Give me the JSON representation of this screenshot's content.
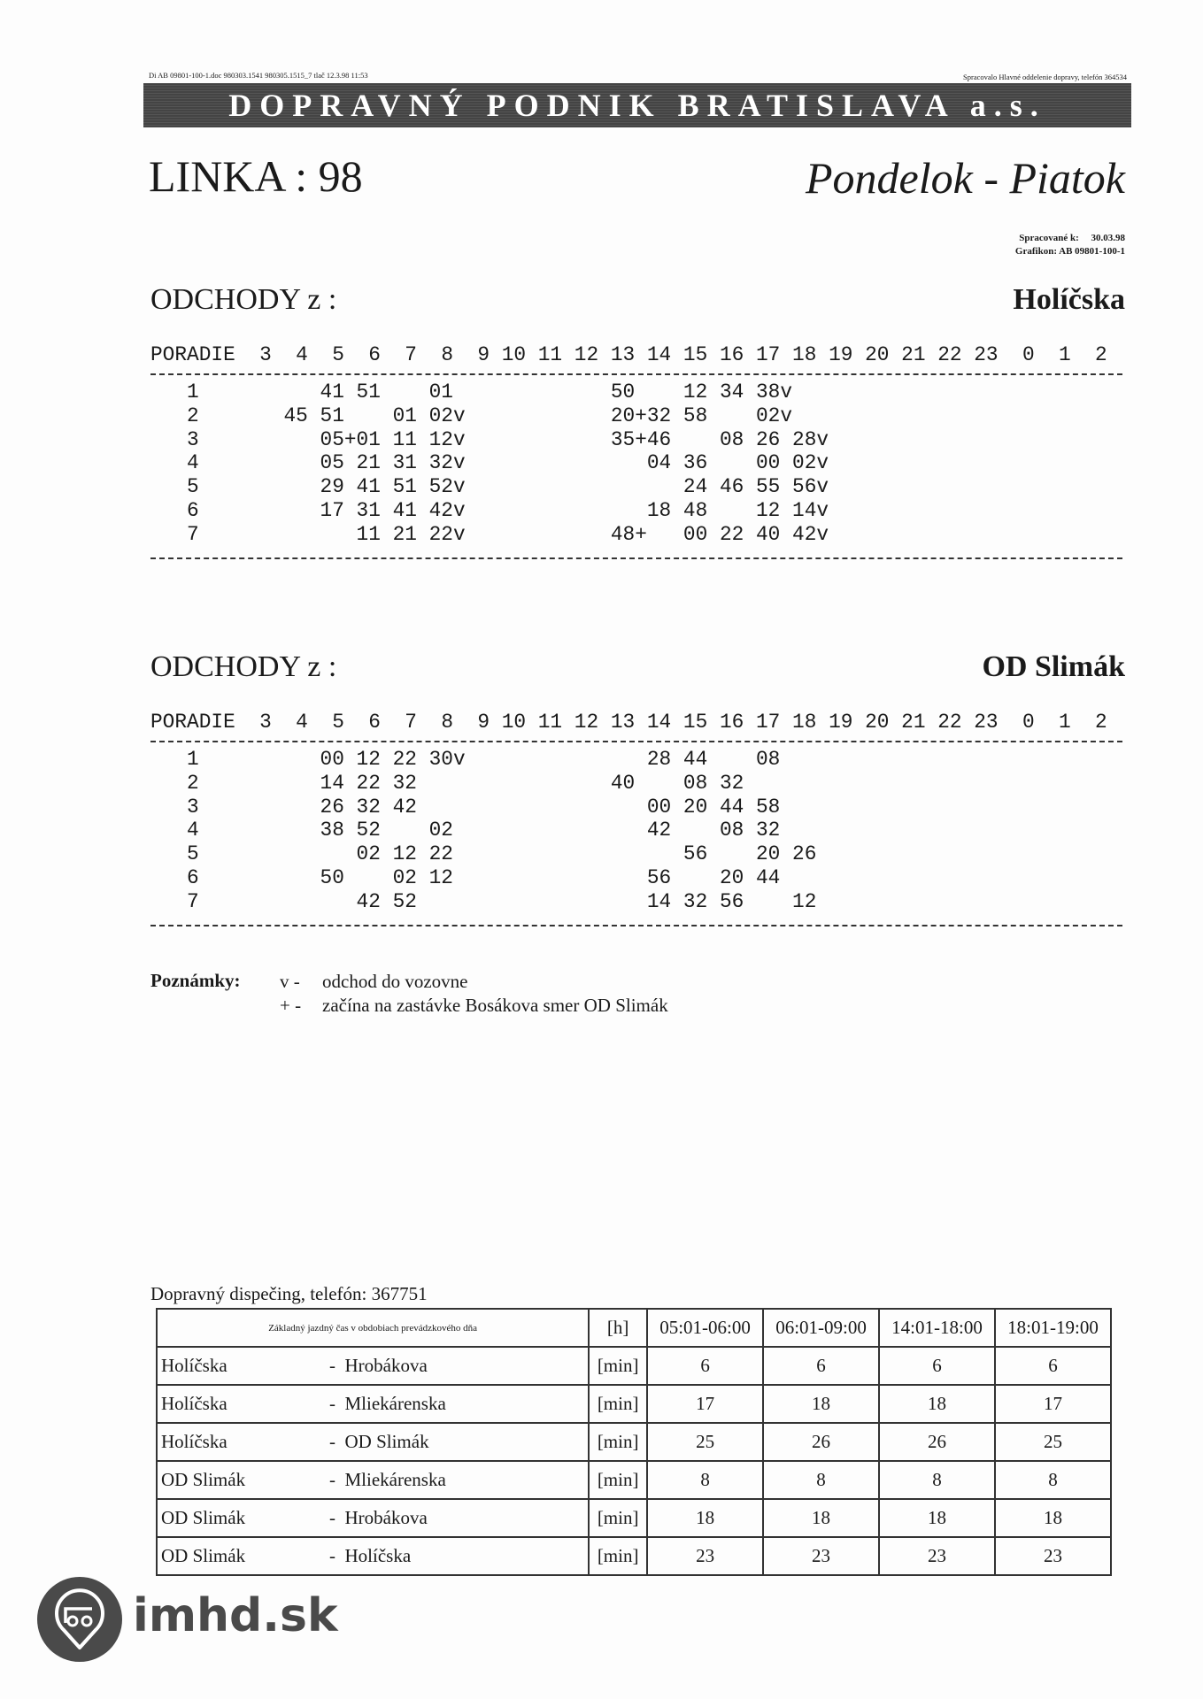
{
  "header": {
    "file_info": "Di AB 09801-100-1.doc 980303.1541 980305.1515_7 tlač 12.3.98 11:53",
    "processed_by": "Spracovalo Hlavné oddelenie dopravy, telefón 364534",
    "company": "DOPRAVNÝ PODNIK BRATISLAVA  a.s.",
    "line": "LINKA : 98",
    "days": "Pondelok - Piatok",
    "processed_label": "Spracované k:",
    "processed_date": "30.03.98",
    "grafikon_label": "Grafikon:",
    "grafikon_value": "AB 09801-100-1"
  },
  "hours": [
    "3",
    "4",
    "5",
    "6",
    "7",
    "8",
    "9",
    "10",
    "11",
    "12",
    "13",
    "14",
    "15",
    "16",
    "17",
    "18",
    "19",
    "20",
    "21",
    "22",
    "23",
    "0",
    "1",
    "2"
  ],
  "poradie_label": "PORADIE",
  "sections": [
    {
      "title": "ODCHODY z :",
      "stop": "Holíčska",
      "rows": [
        {
          "n": "1",
          "d": {
            "5": "41",
            "6": "51",
            "8": "01",
            "13": "50",
            "15": "12",
            "16": "34",
            "17": "38v"
          }
        },
        {
          "n": "2",
          "d": {
            "4": "45",
            "5": "51",
            "7": "01",
            "8": "02v",
            "13": "20+",
            "14": "32",
            "15": "58",
            "17": "02v"
          }
        },
        {
          "n": "3",
          "d": {
            "5": "05+",
            "6": "01",
            "7": "11",
            "8": "12v",
            "13": "35+",
            "14": "46",
            "16": "08",
            "17": "26",
            "18": "28v"
          }
        },
        {
          "n": "4",
          "d": {
            "5": "05",
            "6": "21",
            "7": "31",
            "8": "32v",
            "14": "04",
            "15": "36",
            "17": "00",
            "18": "02v"
          }
        },
        {
          "n": "5",
          "d": {
            "5": "29",
            "6": "41",
            "7": "51",
            "8": "52v",
            "15": "24",
            "16": "46",
            "17": "55",
            "18": "56v"
          }
        },
        {
          "n": "6",
          "d": {
            "5": "17",
            "6": "31",
            "7": "41",
            "8": "42v",
            "14": "18",
            "15": "48",
            "17": "12",
            "18": "14v"
          }
        },
        {
          "n": "7",
          "d": {
            "6": "11",
            "7": "21",
            "8": "22v",
            "13": "48+",
            "15": "00",
            "16": "22",
            "17": "40",
            "18": "42v"
          }
        }
      ]
    },
    {
      "title": "ODCHODY z :",
      "stop": "OD Slimák",
      "rows": [
        {
          "n": "1",
          "d": {
            "5": "00",
            "6": "12",
            "7": "22",
            "8": "30v",
            "14": "28",
            "15": "44",
            "17": "08"
          }
        },
        {
          "n": "2",
          "d": {
            "5": "14",
            "6": "22",
            "7": "32",
            "13": "40",
            "15": "08",
            "16": "32"
          }
        },
        {
          "n": "3",
          "d": {
            "5": "26",
            "6": "32",
            "7": "42",
            "14": "00",
            "15": "20",
            "16": "44",
            "17": "58"
          }
        },
        {
          "n": "4",
          "d": {
            "5": "38",
            "6": "52",
            "8": "02",
            "14": "42",
            "16": "08",
            "17": "32"
          }
        },
        {
          "n": "5",
          "d": {
            "6": "02",
            "7": "12",
            "8": "22",
            "15": "56",
            "17": "20",
            "18": "26"
          }
        },
        {
          "n": "6",
          "d": {
            "5": "50",
            "7": "02",
            "8": "12",
            "14": "56",
            "16": "20",
            "17": "44"
          }
        },
        {
          "n": "7",
          "d": {
            "6": "42",
            "7": "52",
            "14": "14",
            "15": "32",
            "16": "56",
            "18": "12"
          }
        }
      ]
    }
  ],
  "notes": {
    "label": "Poznámky:",
    "items": [
      {
        "sym": "v -",
        "text": "odchod do vozovne"
      },
      {
        "sym": "+ -",
        "text": "začína na zastávke Bosákova smer OD Slimák"
      }
    ]
  },
  "dispatch": "Dopravný dispečing, telefón:  367751",
  "travel_table": {
    "header": [
      "Základný jazdný čas v obdobiach prevádzkového dňa",
      "[h]",
      "05:01-06:00",
      "06:01-09:00",
      "14:01-18:00",
      "18:01-19:00"
    ],
    "rows": [
      {
        "from": "Holíčska",
        "to": "Hrobákova",
        "unit": "[min]",
        "v": [
          "6",
          "6",
          "6",
          "6"
        ]
      },
      {
        "from": "Holíčska",
        "to": "Mliekárenska",
        "unit": "[min]",
        "v": [
          "17",
          "18",
          "18",
          "17"
        ]
      },
      {
        "from": "Holíčska",
        "to": "OD Slimák",
        "unit": "[min]",
        "v": [
          "25",
          "26",
          "26",
          "25"
        ]
      },
      {
        "from": "OD Slimák",
        "to": "Mliekárenska",
        "unit": "[min]",
        "v": [
          "8",
          "8",
          "8",
          "8"
        ]
      },
      {
        "from": "OD Slimák",
        "to": "Hrobákova",
        "unit": "[min]",
        "v": [
          "18",
          "18",
          "18",
          "18"
        ]
      },
      {
        "from": "OD Slimák",
        "to": "Holíčska",
        "unit": "[min]",
        "v": [
          "23",
          "23",
          "23",
          "23"
        ]
      }
    ]
  },
  "logo": {
    "text": "imhd.sk",
    "color": "#4a4a4a"
  }
}
